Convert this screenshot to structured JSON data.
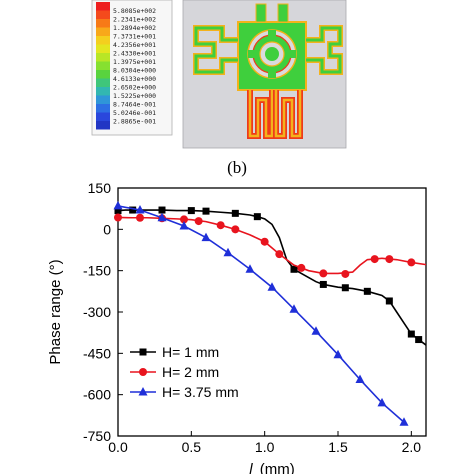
{
  "figure": {
    "caption": "(b)",
    "color_scale_values": [
      "5.8085e+002",
      "2.2341e+002",
      "1.2894e+002",
      "7.3731e+001",
      "4.2356e+001",
      "2.4330e+001",
      "1.3975e+001",
      "8.0304e+000",
      "4.6133e+000",
      "2.6502e+000",
      "1.5225e+000",
      "8.7464e-001",
      "5.0246e-001",
      "2.8865e-001"
    ],
    "color_scale_colors": [
      "#ee1f1f",
      "#f44a1c",
      "#f77a17",
      "#f8a81a",
      "#f4cf1e",
      "#e3e620",
      "#b8e626",
      "#86e030",
      "#59d33e",
      "#3fc67a",
      "#32b7b1",
      "#2f96d8",
      "#2d6fe3",
      "#2a47dc",
      "#2236c4"
    ],
    "structure_colors": {
      "board": "#cfcfd3",
      "conductor": "#3fcf3d",
      "edge_hot": "#ee3a1a",
      "edge_warm": "#f4b21b",
      "hole": "#e6e6e8"
    }
  },
  "chart_data": {
    "type": "line",
    "title": "",
    "xlabel": "l",
    "xlabel_suffix": "(mm)",
    "ylabel": "Phase range (°)",
    "xlim": [
      0.0,
      2.1
    ],
    "ylim": [
      -750,
      150
    ],
    "xticks": [
      "0.0",
      "0.5",
      "1.0",
      "1.5",
      "2.0"
    ],
    "xtick_values": [
      0.0,
      0.5,
      1.0,
      1.5,
      2.0
    ],
    "yticks": [
      "150",
      "0",
      "-150",
      "-300",
      "-450",
      "-600",
      "-750"
    ],
    "ytick_values": [
      150,
      0,
      -150,
      -300,
      -450,
      -600,
      -750
    ],
    "legend_position": "lower-left",
    "series": [
      {
        "name": "H= 1 mm",
        "color": "#000000",
        "marker": "square",
        "x": [
          0.0,
          0.03,
          0.05,
          0.1,
          0.2,
          0.3,
          0.4,
          0.5,
          0.6,
          0.7,
          0.8,
          0.9,
          0.95,
          1.0,
          1.05,
          1.1,
          1.15,
          1.2,
          1.25,
          1.3,
          1.35,
          1.4,
          1.5,
          1.6,
          1.7,
          1.8,
          1.85,
          1.9,
          1.95,
          2.0,
          2.05,
          2.1
        ],
        "y": [
          68,
          69,
          70,
          70,
          70,
          70,
          68,
          68,
          66,
          62,
          58,
          52,
          46,
          38,
          18,
          -30,
          -110,
          -145,
          -160,
          -175,
          -190,
          -200,
          -210,
          -215,
          -225,
          -240,
          -260,
          -300,
          -340,
          -380,
          -400,
          -420
        ],
        "marker_x": [
          0.0,
          0.1,
          0.3,
          0.5,
          0.6,
          0.8,
          0.95,
          1.2,
          1.4,
          1.55,
          1.7,
          1.85,
          2.0,
          2.05
        ],
        "marker_y": [
          68,
          70,
          70,
          68,
          66,
          58,
          46,
          -145,
          -200,
          -212,
          -225,
          -260,
          -380,
          -400
        ]
      },
      {
        "name": "H= 2 mm",
        "color": "#e8141e",
        "marker": "circle",
        "x": [
          0.0,
          0.1,
          0.2,
          0.3,
          0.4,
          0.5,
          0.6,
          0.7,
          0.8,
          0.9,
          1.0,
          1.1,
          1.2,
          1.3,
          1.4,
          1.5,
          1.6,
          1.65,
          1.7,
          1.8,
          1.9,
          2.0,
          2.1
        ],
        "y": [
          43,
          42,
          42,
          40,
          38,
          35,
          28,
          15,
          0,
          -20,
          -45,
          -90,
          -130,
          -150,
          -160,
          -160,
          -155,
          -130,
          -110,
          -105,
          -110,
          -120,
          -128
        ],
        "marker_x": [
          0.0,
          0.15,
          0.3,
          0.45,
          0.55,
          0.7,
          0.8,
          1.0,
          1.1,
          1.25,
          1.4,
          1.55,
          1.75,
          1.85,
          2.0
        ],
        "marker_y": [
          43,
          42,
          40,
          36,
          30,
          15,
          0,
          -45,
          -90,
          -140,
          -160,
          -162,
          -108,
          -108,
          -120
        ]
      },
      {
        "name": "H= 3.75 mm",
        "color": "#1f2fd8",
        "marker": "triangle",
        "x": [
          0.0,
          0.15,
          0.3,
          0.45,
          0.6,
          0.75,
          0.9,
          1.05,
          1.2,
          1.35,
          1.5,
          1.65,
          1.8,
          1.95
        ],
        "y": [
          85,
          70,
          42,
          12,
          -30,
          -85,
          -145,
          -210,
          -290,
          -370,
          -455,
          -545,
          -630,
          -700
        ],
        "marker_x": [
          0.0,
          0.15,
          0.3,
          0.45,
          0.6,
          0.75,
          0.9,
          1.05,
          1.2,
          1.35,
          1.5,
          1.65,
          1.8,
          1.95
        ],
        "marker_y": [
          85,
          70,
          42,
          12,
          -30,
          -85,
          -145,
          -210,
          -290,
          -370,
          -455,
          -545,
          -630,
          -700
        ]
      }
    ]
  }
}
